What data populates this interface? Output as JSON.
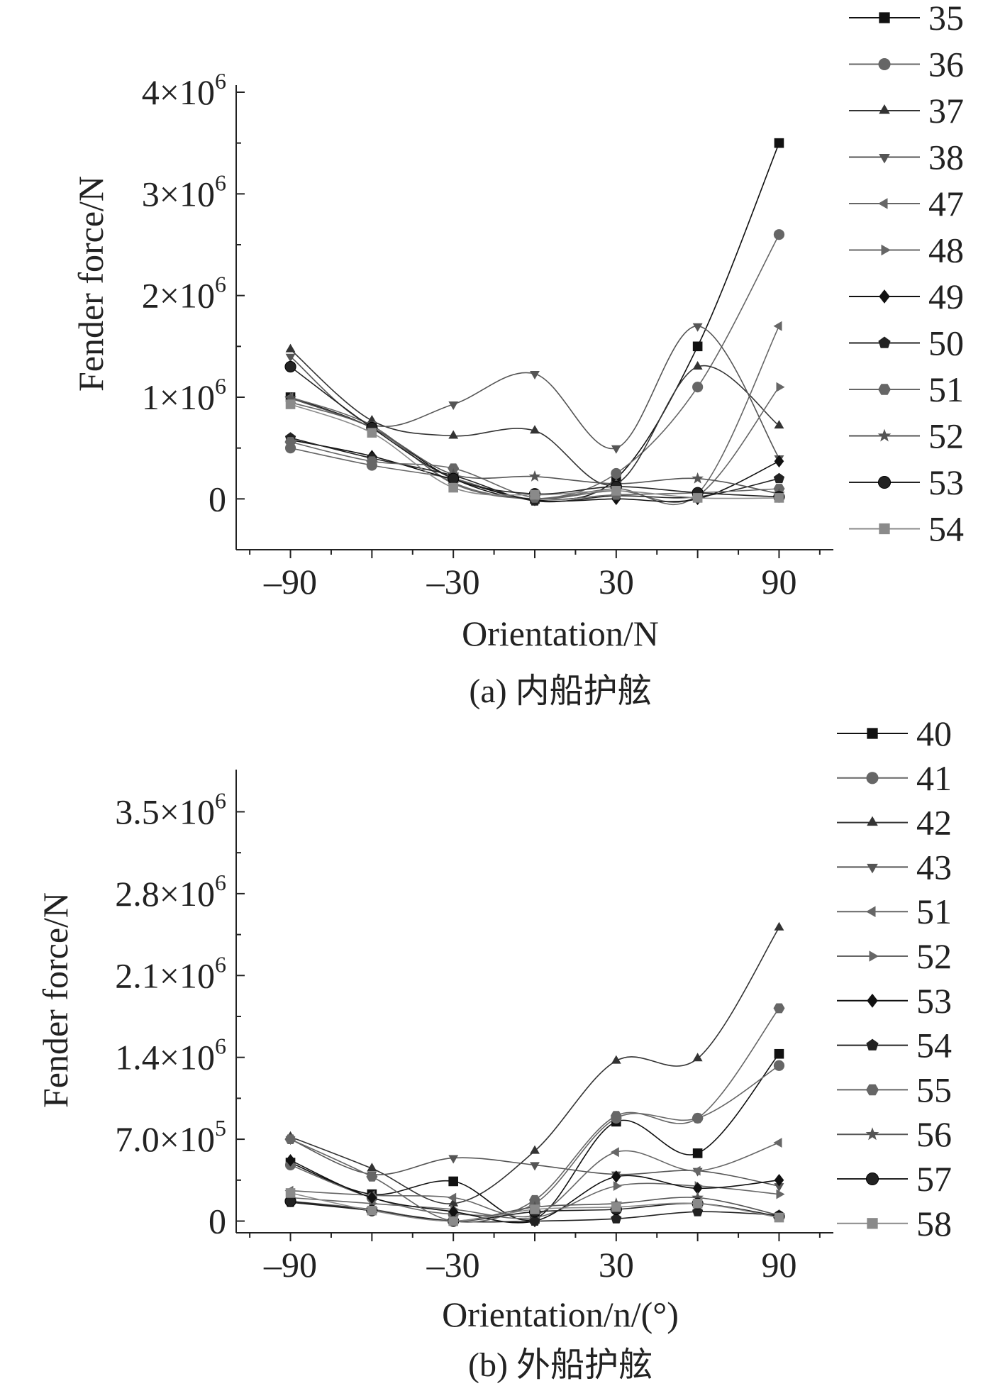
{
  "chart_data": [
    {
      "type": "line",
      "title": "",
      "caption": "(a) 内船护舷",
      "xlabel": "Orientation/N",
      "ylabel": "Fender force/N",
      "xlim": [
        -110,
        110
      ],
      "ylim": [
        -500000,
        4000000
      ],
      "x": [
        -90,
        -60,
        -30,
        0,
        30,
        60,
        90
      ],
      "xticks": [
        -90,
        -30,
        30,
        90
      ],
      "xtick_labels": [
        "–90",
        "–30",
        "30",
        "90"
      ],
      "yticks": [
        0,
        1000000,
        2000000,
        3000000,
        4000000
      ],
      "ytick_labels": [
        {
          "value": 0,
          "base": "0",
          "exp": ""
        },
        {
          "value": 1000000,
          "base": "1×10",
          "exp": "6"
        },
        {
          "value": 2000000,
          "base": "2×10",
          "exp": "6"
        },
        {
          "value": 3000000,
          "base": "3×10",
          "exp": "6"
        },
        {
          "value": 4000000,
          "base": "4×10",
          "exp": "6"
        }
      ],
      "legend_position": "right",
      "series": [
        {
          "name": "35",
          "marker": "square",
          "color": "#111111",
          "values": [
            1000000,
            700000,
            200000,
            0,
            200000,
            1500000,
            3500000
          ]
        },
        {
          "name": "36",
          "marker": "circle",
          "color": "#666666",
          "values": [
            500000,
            330000,
            200000,
            0,
            250000,
            1100000,
            2600000
          ]
        },
        {
          "name": "37",
          "marker": "triangle-up",
          "color": "#333333",
          "values": [
            1470000,
            770000,
            620000,
            670000,
            150000,
            1300000,
            720000
          ]
        },
        {
          "name": "38",
          "marker": "triangle-down",
          "color": "#555555",
          "values": [
            1400000,
            730000,
            930000,
            1230000,
            500000,
            1700000,
            400000
          ]
        },
        {
          "name": "47",
          "marker": "triangle-left",
          "color": "#666666",
          "values": [
            1000000,
            720000,
            150000,
            0,
            100000,
            50000,
            1700000
          ]
        },
        {
          "name": "48",
          "marker": "triangle-right",
          "color": "#666666",
          "values": [
            950000,
            700000,
            160000,
            0,
            80000,
            30000,
            1100000
          ]
        },
        {
          "name": "49",
          "marker": "diamond",
          "color": "#111111",
          "values": [
            580000,
            420000,
            190000,
            -10000,
            0,
            0,
            370000
          ]
        },
        {
          "name": "50",
          "marker": "pentagon",
          "color": "#222222",
          "values": [
            600000,
            400000,
            230000,
            -20000,
            30000,
            20000,
            200000
          ]
        },
        {
          "name": "51",
          "marker": "hexagon",
          "color": "#666666",
          "values": [
            560000,
            370000,
            300000,
            10000,
            40000,
            60000,
            100000
          ]
        },
        {
          "name": "52",
          "marker": "star",
          "color": "#555555",
          "values": [
            990000,
            700000,
            240000,
            220000,
            150000,
            200000,
            50000
          ]
        },
        {
          "name": "53",
          "marker": "sphere",
          "color": "#222222",
          "values": [
            1300000,
            700000,
            200000,
            50000,
            120000,
            60000,
            20000
          ]
        },
        {
          "name": "54",
          "marker": "square",
          "color": "#8a8a8a",
          "values": [
            930000,
            650000,
            110000,
            40000,
            80000,
            10000,
            10000
          ]
        }
      ]
    },
    {
      "type": "line",
      "title": "",
      "caption": "(b) 外船护舷",
      "xlabel": "Orientation/n/(°)",
      "ylabel": "Fender force/N",
      "xlim": [
        -110,
        110
      ],
      "ylim": [
        -100000,
        3800000
      ],
      "x": [
        -90,
        -60,
        -30,
        0,
        30,
        60,
        90
      ],
      "xticks": [
        -90,
        -30,
        30,
        90
      ],
      "xtick_labels": [
        "–90",
        "–30",
        "30",
        "90"
      ],
      "yticks": [
        0,
        700000,
        1400000,
        2100000,
        2800000,
        3500000
      ],
      "ytick_labels": [
        {
          "value": 0,
          "base": "0",
          "exp": ""
        },
        {
          "value": 700000,
          "base": "7.0×10",
          "exp": "5"
        },
        {
          "value": 1400000,
          "base": "1.4×10",
          "exp": "6"
        },
        {
          "value": 2100000,
          "base": "2.1×10",
          "exp": "6"
        },
        {
          "value": 2800000,
          "base": "2.8×10",
          "exp": "6"
        },
        {
          "value": 3500000,
          "base": "3.5×10",
          "exp": "6"
        }
      ],
      "legend_position": "right",
      "series": [
        {
          "name": "40",
          "marker": "square",
          "color": "#111111",
          "values": [
            500000,
            230000,
            340000,
            20000,
            850000,
            580000,
            1430000
          ]
        },
        {
          "name": "41",
          "marker": "circle",
          "color": "#666666",
          "values": [
            480000,
            200000,
            60000,
            150000,
            880000,
            880000,
            1330000
          ]
        },
        {
          "name": "42",
          "marker": "triangle-up",
          "color": "#333333",
          "values": [
            720000,
            450000,
            150000,
            600000,
            1370000,
            1390000,
            2510000
          ]
        },
        {
          "name": "43",
          "marker": "triangle-down",
          "color": "#555555",
          "values": [
            700000,
            400000,
            540000,
            480000,
            400000,
            430000,
            300000
          ]
        },
        {
          "name": "51",
          "marker": "triangle-left",
          "color": "#666666",
          "values": [
            260000,
            220000,
            200000,
            50000,
            590000,
            430000,
            670000
          ]
        },
        {
          "name": "52",
          "marker": "triangle-right",
          "color": "#666666",
          "values": [
            200000,
            150000,
            100000,
            30000,
            300000,
            300000,
            230000
          ]
        },
        {
          "name": "53",
          "marker": "diamond",
          "color": "#111111",
          "values": [
            520000,
            200000,
            80000,
            0,
            380000,
            280000,
            350000
          ]
        },
        {
          "name": "54",
          "marker": "pentagon",
          "color": "#222222",
          "values": [
            160000,
            90000,
            0,
            0,
            20000,
            80000,
            50000
          ]
        },
        {
          "name": "55",
          "marker": "hexagon",
          "color": "#666666",
          "values": [
            700000,
            380000,
            0,
            180000,
            900000,
            880000,
            1820000
          ]
        },
        {
          "name": "56",
          "marker": "star",
          "color": "#555555",
          "values": [
            170000,
            100000,
            0,
            120000,
            150000,
            200000,
            50000
          ]
        },
        {
          "name": "57",
          "marker": "sphere",
          "color": "#222222",
          "values": [
            170000,
            90000,
            0,
            80000,
            100000,
            150000,
            40000
          ]
        },
        {
          "name": "58",
          "marker": "square",
          "color": "#8a8a8a",
          "values": [
            240000,
            90000,
            0,
            100000,
            120000,
            150000,
            30000
          ]
        }
      ]
    }
  ]
}
